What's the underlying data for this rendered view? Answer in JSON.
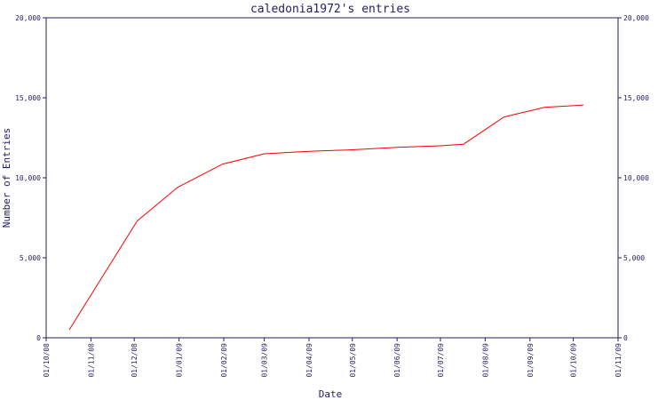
{
  "chart_data": {
    "type": "line",
    "title": "caledonia1972's entries",
    "xlabel": "Date",
    "ylabel": "Number of Entries",
    "xlim": [
      "2008-10-01",
      "2009-11-01"
    ],
    "ylim": [
      0,
      20000
    ],
    "x_ticks": [
      "01/10/08",
      "01/11/08",
      "01/12/08",
      "01/01/09",
      "01/02/09",
      "01/03/09",
      "01/04/09",
      "01/05/09",
      "01/06/09",
      "01/07/09",
      "01/08/09",
      "01/09/09",
      "01/10/09",
      "01/11/09"
    ],
    "y_ticks": [
      "0",
      "5,000",
      "10,000",
      "15,000",
      "20,000"
    ],
    "y_tick_values": [
      0,
      5000,
      10000,
      15000,
      20000
    ],
    "right_y_axis": true,
    "grid": false,
    "legend": "none",
    "series": [
      {
        "color": "#ff0000",
        "points": [
          {
            "x": "2008-10-17",
            "y": 500
          },
          {
            "x": "2008-12-03",
            "y": 7300
          },
          {
            "x": "2008-12-31",
            "y": 9400
          },
          {
            "x": "2009-01-31",
            "y": 10850
          },
          {
            "x": "2009-03-01",
            "y": 11500
          },
          {
            "x": "2009-04-01",
            "y": 11650
          },
          {
            "x": "2009-05-01",
            "y": 11750
          },
          {
            "x": "2009-06-01",
            "y": 11900
          },
          {
            "x": "2009-07-01",
            "y": 12000
          },
          {
            "x": "2009-07-17",
            "y": 12100
          },
          {
            "x": "2009-08-14",
            "y": 13800
          },
          {
            "x": "2009-09-11",
            "y": 14400
          },
          {
            "x": "2009-10-08",
            "y": 14550
          }
        ]
      }
    ]
  },
  "colors": {
    "axis": "#1f1f66",
    "line": "#ff0000",
    "background": "#ffffff"
  }
}
